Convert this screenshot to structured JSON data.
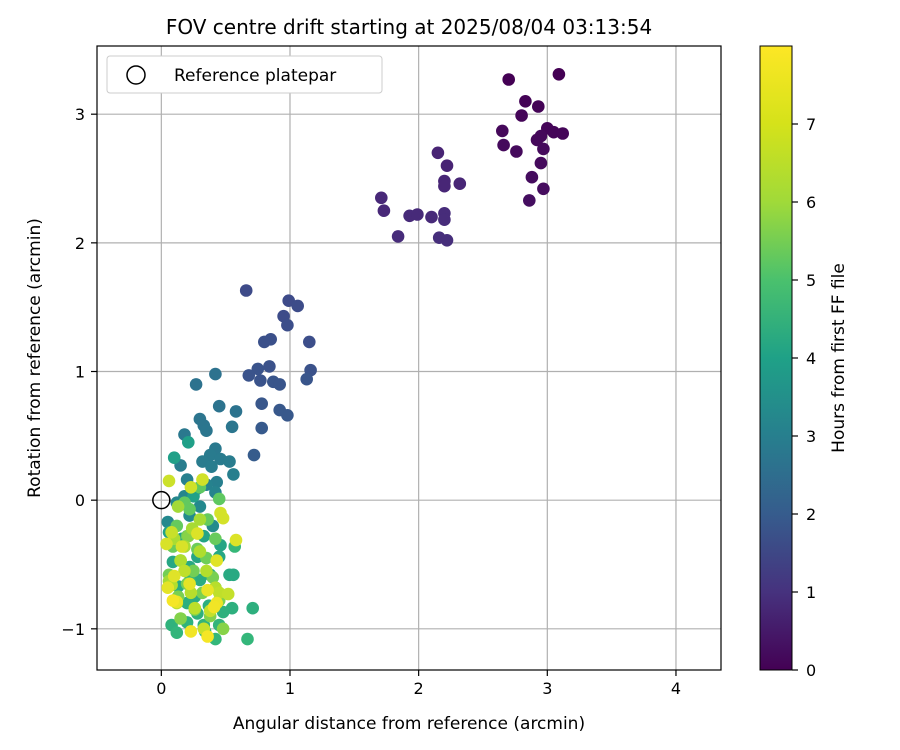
{
  "chart_data": {
    "type": "scatter",
    "title": "FOV centre drift starting at 2025/08/04 03:13:54",
    "xlabel": "Angular distance from reference (arcmin)",
    "ylabel": "Rotation from reference (arcmin)",
    "xlim": [
      -0.5,
      4.35
    ],
    "ylim": [
      -1.32,
      3.53
    ],
    "x_ticks": [
      0,
      1,
      2,
      3,
      4
    ],
    "y_ticks": [
      -1,
      0,
      1,
      2,
      3
    ],
    "grid": true,
    "legend": {
      "placement": "top-left",
      "entries": [
        "Reference platepar"
      ]
    },
    "reference_point": {
      "x": 0,
      "y": 0
    },
    "colorbar": {
      "label": "Hours from first FF file",
      "colormap": "viridis",
      "min": 0,
      "max": 8,
      "ticks": [
        0,
        1,
        2,
        3,
        4,
        5,
        6,
        7
      ]
    },
    "points": [
      [
        2.7,
        3.27,
        0.0
      ],
      [
        3.09,
        3.31,
        0.0
      ],
      [
        2.83,
        3.1,
        0.05
      ],
      [
        2.93,
        3.06,
        0.05
      ],
      [
        2.8,
        2.99,
        0.1
      ],
      [
        3.0,
        2.89,
        0.1
      ],
      [
        3.05,
        2.86,
        0.1
      ],
      [
        3.12,
        2.85,
        0.1
      ],
      [
        2.65,
        2.87,
        0.15
      ],
      [
        2.95,
        2.83,
        0.15
      ],
      [
        2.92,
        2.8,
        0.15
      ],
      [
        2.66,
        2.76,
        0.2
      ],
      [
        2.76,
        2.71,
        0.2
      ],
      [
        2.97,
        2.73,
        0.2
      ],
      [
        2.95,
        2.62,
        0.2
      ],
      [
        2.88,
        2.51,
        0.25
      ],
      [
        2.97,
        2.42,
        0.25
      ],
      [
        2.86,
        2.33,
        0.3
      ],
      [
        2.15,
        2.7,
        0.8
      ],
      [
        2.22,
        2.6,
        0.8
      ],
      [
        2.2,
        2.48,
        0.85
      ],
      [
        2.32,
        2.46,
        0.85
      ],
      [
        2.2,
        2.44,
        0.85
      ],
      [
        1.71,
        2.35,
        0.9
      ],
      [
        1.73,
        2.25,
        0.9
      ],
      [
        1.93,
        2.21,
        0.95
      ],
      [
        1.99,
        2.22,
        0.95
      ],
      [
        2.1,
        2.2,
        0.95
      ],
      [
        2.2,
        2.23,
        1.0
      ],
      [
        2.2,
        2.18,
        1.0
      ],
      [
        1.84,
        2.05,
        1.0
      ],
      [
        2.16,
        2.04,
        1.05
      ],
      [
        2.22,
        2.02,
        1.05
      ],
      [
        0.66,
        1.63,
        1.8
      ],
      [
        0.99,
        1.55,
        1.8
      ],
      [
        1.06,
        1.51,
        1.85
      ],
      [
        0.95,
        1.43,
        1.85
      ],
      [
        0.98,
        1.36,
        1.9
      ],
      [
        1.15,
        1.23,
        1.9
      ],
      [
        0.85,
        1.25,
        1.95
      ],
      [
        0.8,
        1.23,
        1.95
      ],
      [
        1.16,
        1.01,
        2.0
      ],
      [
        0.84,
        1.04,
        2.0
      ],
      [
        0.75,
        1.02,
        2.05
      ],
      [
        0.68,
        0.97,
        2.05
      ],
      [
        0.77,
        0.93,
        2.05
      ],
      [
        0.87,
        0.92,
        2.1
      ],
      [
        0.92,
        0.9,
        2.1
      ],
      [
        1.13,
        0.94,
        2.1
      ],
      [
        0.78,
        0.75,
        2.15
      ],
      [
        0.92,
        0.7,
        2.2
      ],
      [
        0.98,
        0.66,
        2.2
      ],
      [
        0.78,
        0.56,
        2.25
      ],
      [
        0.72,
        0.35,
        2.3
      ],
      [
        0.27,
        0.9,
        3.0
      ],
      [
        0.42,
        0.98,
        3.0
      ],
      [
        0.45,
        0.73,
        3.05
      ],
      [
        0.58,
        0.69,
        3.05
      ],
      [
        0.3,
        0.63,
        3.1
      ],
      [
        0.33,
        0.58,
        3.1
      ],
      [
        0.35,
        0.54,
        3.15
      ],
      [
        0.55,
        0.57,
        3.15
      ],
      [
        0.18,
        0.51,
        3.2
      ],
      [
        0.42,
        0.4,
        3.25
      ],
      [
        0.38,
        0.35,
        3.3
      ],
      [
        0.46,
        0.32,
        3.3
      ],
      [
        0.32,
        0.3,
        3.35
      ],
      [
        0.53,
        0.3,
        3.35
      ],
      [
        0.39,
        0.26,
        3.4
      ],
      [
        0.15,
        0.27,
        3.4
      ],
      [
        0.56,
        0.2,
        3.45
      ],
      [
        0.43,
        0.14,
        3.45
      ],
      [
        0.2,
        0.16,
        3.5
      ],
      [
        0.35,
        0.12,
        3.55
      ],
      [
        0.28,
        0.09,
        3.6
      ],
      [
        0.42,
        0.06,
        3.6
      ],
      [
        0.18,
        0.03,
        3.65
      ],
      [
        0.12,
        -0.02,
        3.7
      ],
      [
        0.3,
        -0.05,
        3.75
      ],
      [
        0.05,
        -0.17,
        3.75
      ],
      [
        0.22,
        -0.12,
        3.8
      ],
      [
        0.4,
        -0.2,
        3.85
      ],
      [
        0.1,
        0.33,
        4.5
      ],
      [
        0.21,
        0.45,
        4.5
      ],
      [
        0.25,
        0.03,
        4.55
      ],
      [
        0.06,
        -0.25,
        4.6
      ],
      [
        0.16,
        -0.3,
        4.6
      ],
      [
        0.33,
        -0.28,
        4.65
      ],
      [
        0.46,
        -0.35,
        4.7
      ],
      [
        0.28,
        -0.44,
        4.7
      ],
      [
        0.45,
        -0.44,
        4.75
      ],
      [
        0.09,
        -0.48,
        4.75
      ],
      [
        0.22,
        -0.52,
        4.8
      ],
      [
        0.38,
        -0.58,
        4.85
      ],
      [
        0.53,
        -0.58,
        4.85
      ],
      [
        0.56,
        -0.58,
        4.85
      ],
      [
        0.3,
        -0.62,
        4.9
      ],
      [
        0.13,
        -0.67,
        4.9
      ],
      [
        0.42,
        -0.68,
        4.95
      ],
      [
        0.26,
        -0.75,
        4.95
      ],
      [
        0.2,
        -0.8,
        5.0
      ],
      [
        0.37,
        -0.82,
        5.0
      ],
      [
        0.55,
        -0.84,
        5.05
      ],
      [
        0.71,
        -0.84,
        5.05
      ],
      [
        0.28,
        -0.88,
        5.1
      ],
      [
        0.48,
        -0.87,
        5.1
      ],
      [
        0.08,
        -0.97,
        5.15
      ],
      [
        0.2,
        -0.95,
        5.15
      ],
      [
        0.33,
        -0.97,
        5.2
      ],
      [
        0.45,
        -0.97,
        5.2
      ],
      [
        0.12,
        -1.03,
        5.25
      ],
      [
        0.34,
        -1.02,
        5.25
      ],
      [
        0.42,
        -1.08,
        5.3
      ],
      [
        0.67,
        -1.08,
        5.3
      ],
      [
        0.57,
        -0.36,
        5.35
      ],
      [
        0.22,
        -0.63,
        5.35
      ],
      [
        0.45,
        0.01,
        6.0
      ],
      [
        0.3,
        0.1,
        6.0
      ],
      [
        0.18,
        -0.02,
        6.05
      ],
      [
        0.22,
        -0.07,
        6.05
      ],
      [
        0.36,
        -0.15,
        6.1
      ],
      [
        0.12,
        -0.2,
        6.1
      ],
      [
        0.2,
        -0.28,
        6.15
      ],
      [
        0.42,
        -0.3,
        6.15
      ],
      [
        0.09,
        -0.36,
        6.2
      ],
      [
        0.28,
        -0.38,
        6.2
      ],
      [
        0.35,
        -0.45,
        6.25
      ],
      [
        0.15,
        -0.47,
        6.25
      ],
      [
        0.25,
        -0.55,
        6.3
      ],
      [
        0.06,
        -0.58,
        6.3
      ],
      [
        0.4,
        -0.6,
        6.35
      ],
      [
        0.2,
        -0.65,
        6.35
      ],
      [
        0.32,
        -0.72,
        6.4
      ],
      [
        0.13,
        -0.75,
        6.4
      ],
      [
        0.45,
        -0.78,
        6.45
      ],
      [
        0.26,
        -0.85,
        6.45
      ],
      [
        0.38,
        -0.9,
        6.5
      ],
      [
        0.15,
        -0.92,
        6.5
      ],
      [
        0.48,
        -1.0,
        6.55
      ],
      [
        0.21,
        -0.28,
        6.55
      ],
      [
        0.06,
        -0.63,
        6.9
      ],
      [
        0.13,
        -0.05,
        6.9
      ],
      [
        0.3,
        -0.15,
        6.95
      ],
      [
        0.24,
        -0.22,
        6.95
      ],
      [
        0.1,
        -0.3,
        7.0
      ],
      [
        0.18,
        -0.36,
        7.0
      ],
      [
        0.3,
        -0.4,
        7.05
      ],
      [
        0.15,
        -0.47,
        7.05
      ],
      [
        0.35,
        -0.55,
        7.1
      ],
      [
        0.08,
        -0.66,
        7.1
      ],
      [
        0.23,
        -0.72,
        7.15
      ],
      [
        0.42,
        -0.68,
        7.15
      ],
      [
        0.12,
        -0.8,
        7.2
      ],
      [
        0.26,
        -0.84,
        7.2
      ],
      [
        0.45,
        -0.72,
        7.25
      ],
      [
        0.18,
        -0.55,
        7.25
      ],
      [
        0.38,
        -0.86,
        7.3
      ],
      [
        0.52,
        -0.73,
        7.3
      ],
      [
        0.08,
        -0.25,
        7.35
      ],
      [
        0.33,
        -1.0,
        7.35
      ],
      [
        0.06,
        0.15,
        7.4
      ],
      [
        0.23,
        0.1,
        7.45
      ],
      [
        0.32,
        0.16,
        7.45
      ],
      [
        0.46,
        -0.1,
        7.5
      ],
      [
        0.48,
        -0.14,
        7.5
      ],
      [
        0.04,
        -0.34,
        7.55
      ],
      [
        0.16,
        -0.36,
        7.55
      ],
      [
        0.28,
        -0.26,
        7.6
      ],
      [
        0.58,
        -0.31,
        7.6
      ],
      [
        0.43,
        -0.47,
        7.65
      ],
      [
        0.1,
        -0.59,
        7.65
      ],
      [
        0.05,
        -0.68,
        7.7
      ],
      [
        0.22,
        -0.65,
        7.7
      ],
      [
        0.36,
        -0.7,
        7.75
      ],
      [
        0.12,
        -0.79,
        7.75
      ],
      [
        0.43,
        -0.8,
        7.8
      ],
      [
        0.41,
        -0.83,
        7.85
      ],
      [
        0.23,
        -1.02,
        7.85
      ],
      [
        0.36,
        -1.06,
        7.9
      ],
      [
        0.09,
        -0.78,
        7.9
      ]
    ]
  }
}
